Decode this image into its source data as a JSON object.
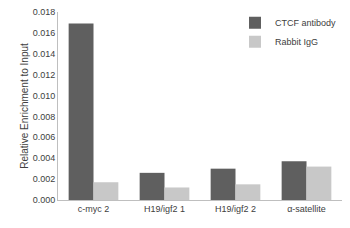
{
  "chart_data": {
    "type": "bar",
    "y_label": "Relative Enrichment to Input",
    "categories": [
      "c-myc 2",
      "H19/igf2 1",
      "H19/igf2 2",
      "α-satellite"
    ],
    "series": [
      {
        "name": "CTCF antibody",
        "color": "#5f5f5f",
        "values": [
          0.0169,
          0.0026,
          0.003,
          0.0037
        ]
      },
      {
        "name": "Rabbit IgG",
        "color": "#c8c8c8",
        "values": [
          0.0017,
          0.0012,
          0.0015,
          0.0032
        ]
      }
    ],
    "ylim": [
      0,
      0.018
    ],
    "yticks": [
      {
        "value": 0,
        "label": "0.000"
      },
      {
        "value": 0.002,
        "label": "0.002"
      },
      {
        "value": 0.004,
        "label": "0.004"
      },
      {
        "value": 0.006,
        "label": "0.006"
      },
      {
        "value": 0.008,
        "label": "0.008"
      },
      {
        "value": 0.01,
        "label": "0.010"
      },
      {
        "value": 0.012,
        "label": "0.012"
      },
      {
        "value": 0.014,
        "label": "0.014"
      },
      {
        "value": 0.016,
        "label": "0.016"
      },
      {
        "value": 0.018,
        "label": "0.018"
      }
    ],
    "grid": false,
    "legend": "top-right"
  }
}
